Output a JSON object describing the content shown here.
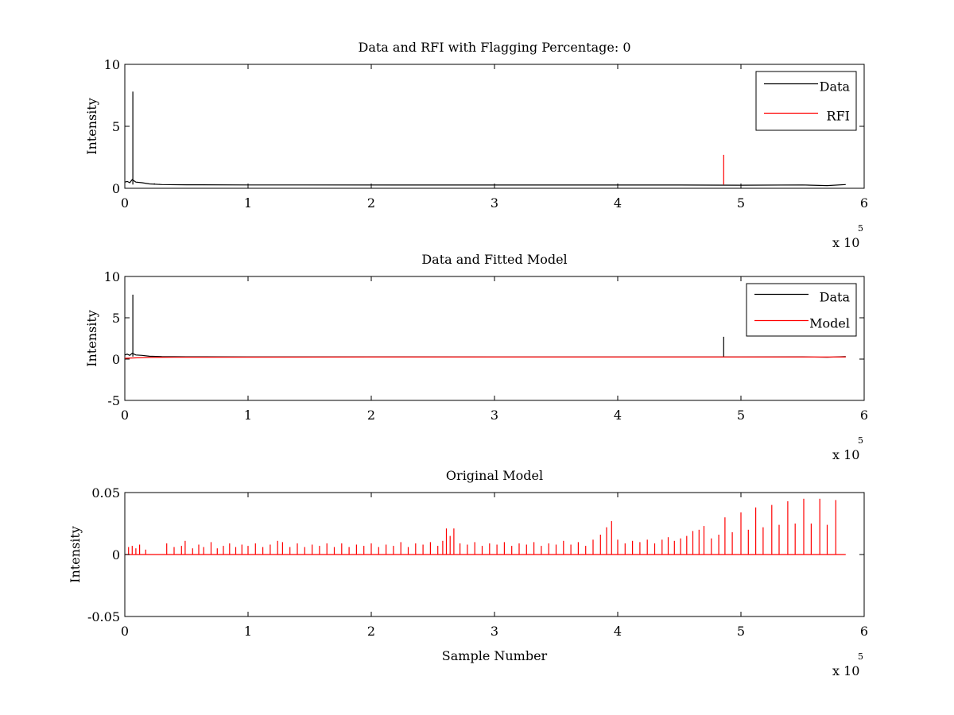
{
  "colors": {
    "data": "#000000",
    "rfi": "#ff0000",
    "model": "#ff0000",
    "background": "#ffffff"
  },
  "chart_data": [
    {
      "type": "line",
      "title": "Data and RFI with Flagging Percentage: 0",
      "xlabel": "",
      "ylabel": "Intensity",
      "xlim": [
        0,
        600000
      ],
      "ylim": [
        0,
        10
      ],
      "xticks": [
        0,
        1,
        2,
        3,
        4,
        5,
        6
      ],
      "yticks": [
        0,
        5,
        10
      ],
      "x_exponent": {
        "base": "x 10",
        "power": "5"
      },
      "legend": {
        "position": "top-right",
        "entries": [
          "Data",
          "RFI"
        ]
      },
      "series": [
        {
          "name": "Data",
          "color": "#000000",
          "baseline": [
            [
              0,
              0.5
            ],
            [
              2000,
              0.55
            ],
            [
              4000,
              0.45
            ],
            [
              6000,
              0.7
            ],
            [
              9000,
              0.5
            ],
            [
              14000,
              0.45
            ],
            [
              20000,
              0.35
            ],
            [
              30000,
              0.3
            ],
            [
              50000,
              0.28
            ],
            [
              100000,
              0.27
            ],
            [
              300000,
              0.26
            ],
            [
              450000,
              0.26
            ],
            [
              500000,
              0.25
            ],
            [
              550000,
              0.27
            ],
            [
              570000,
              0.22
            ],
            [
              585000,
              0.3
            ]
          ],
          "spikes": [
            [
              6500,
              7.8
            ],
            [
              24000,
              0.4
            ],
            [
              28000,
              0.35
            ]
          ]
        },
        {
          "name": "RFI",
          "color": "#ff0000",
          "baseline": [],
          "spikes": [
            [
              486000,
              2.7
            ]
          ]
        }
      ]
    },
    {
      "type": "line",
      "title": "Data and Fitted Model",
      "xlabel": "",
      "ylabel": "Intensity",
      "xlim": [
        0,
        600000
      ],
      "ylim": [
        -5,
        10
      ],
      "xticks": [
        0,
        1,
        2,
        3,
        4,
        5,
        6
      ],
      "yticks": [
        -5,
        0,
        5,
        10
      ],
      "x_exponent": {
        "base": "x 10",
        "power": "5"
      },
      "legend": {
        "position": "top-right",
        "entries": [
          "Data",
          "Model"
        ]
      },
      "series": [
        {
          "name": "Data",
          "color": "#000000",
          "baseline": [
            [
              0,
              0.5
            ],
            [
              2000,
              0.6
            ],
            [
              4000,
              0.45
            ],
            [
              6000,
              0.7
            ],
            [
              9000,
              0.5
            ],
            [
              14000,
              0.45
            ],
            [
              20000,
              0.35
            ],
            [
              30000,
              0.3
            ],
            [
              50000,
              0.28
            ],
            [
              100000,
              0.27
            ],
            [
              300000,
              0.26
            ],
            [
              450000,
              0.26
            ],
            [
              500000,
              0.25
            ],
            [
              550000,
              0.27
            ],
            [
              570000,
              0.22
            ],
            [
              585000,
              0.3
            ]
          ],
          "spikes": [
            [
              6500,
              7.8
            ],
            [
              486000,
              2.7
            ]
          ]
        },
        {
          "name": "Model",
          "color": "#ff0000",
          "baseline": [
            [
              0,
              0.1
            ],
            [
              10000,
              0.15
            ],
            [
              20000,
              0.2
            ],
            [
              40000,
              0.22
            ],
            [
              200000,
              0.25
            ],
            [
              585000,
              0.25
            ]
          ],
          "spikes": []
        }
      ]
    },
    {
      "type": "line",
      "title": "Original Model",
      "xlabel": "Sample Number",
      "ylabel": "Intensity",
      "xlim": [
        0,
        600000
      ],
      "ylim": [
        -0.05,
        0.05
      ],
      "xticks": [
        0,
        1,
        2,
        3,
        4,
        5,
        6
      ],
      "yticks": [
        -0.05,
        0,
        0.05
      ],
      "ytick_labels": [
        "-0.05",
        "0",
        "0.05"
      ],
      "x_exponent": {
        "base": "x 10",
        "power": "5"
      },
      "legend": null,
      "series": [
        {
          "name": "",
          "color": "#ff0000",
          "baseline": [
            [
              0,
              0
            ],
            [
              585000,
              0
            ]
          ],
          "spikes": [
            [
              3000,
              0.006
            ],
            [
              6000,
              0.007
            ],
            [
              9000,
              0.005
            ],
            [
              12000,
              0.008
            ],
            [
              17000,
              0.004
            ],
            [
              34000,
              0.009
            ],
            [
              40000,
              0.006
            ],
            [
              46000,
              0.007
            ],
            [
              49000,
              0.011
            ],
            [
              55000,
              0.005
            ],
            [
              60000,
              0.008
            ],
            [
              64000,
              0.006
            ],
            [
              70000,
              0.01
            ],
            [
              75000,
              0.005
            ],
            [
              80000,
              0.007
            ],
            [
              85000,
              0.009
            ],
            [
              90000,
              0.006
            ],
            [
              95000,
              0.008
            ],
            [
              100000,
              0.007
            ],
            [
              106000,
              0.009
            ],
            [
              112000,
              0.006
            ],
            [
              118000,
              0.008
            ],
            [
              124000,
              0.011
            ],
            [
              128000,
              0.01
            ],
            [
              134000,
              0.006
            ],
            [
              140000,
              0.009
            ],
            [
              146000,
              0.006
            ],
            [
              152000,
              0.008
            ],
            [
              158000,
              0.007
            ],
            [
              164000,
              0.009
            ],
            [
              170000,
              0.006
            ],
            [
              176000,
              0.009
            ],
            [
              182000,
              0.006
            ],
            [
              188000,
              0.008
            ],
            [
              194000,
              0.007
            ],
            [
              200000,
              0.009
            ],
            [
              206000,
              0.006
            ],
            [
              212000,
              0.008
            ],
            [
              218000,
              0.007
            ],
            [
              224000,
              0.01
            ],
            [
              230000,
              0.006
            ],
            [
              236000,
              0.009
            ],
            [
              242000,
              0.008
            ],
            [
              248000,
              0.01
            ],
            [
              254000,
              0.007
            ],
            [
              258000,
              0.011
            ],
            [
              261000,
              0.021
            ],
            [
              264000,
              0.015
            ],
            [
              267000,
              0.021
            ],
            [
              272000,
              0.009
            ],
            [
              278000,
              0.008
            ],
            [
              284000,
              0.01
            ],
            [
              290000,
              0.007
            ],
            [
              296000,
              0.009
            ],
            [
              302000,
              0.008
            ],
            [
              308000,
              0.01
            ],
            [
              314000,
              0.007
            ],
            [
              320000,
              0.009
            ],
            [
              326000,
              0.008
            ],
            [
              332000,
              0.01
            ],
            [
              338000,
              0.007
            ],
            [
              344000,
              0.009
            ],
            [
              350000,
              0.008
            ],
            [
              356000,
              0.011
            ],
            [
              362000,
              0.008
            ],
            [
              368000,
              0.01
            ],
            [
              374000,
              0.007
            ],
            [
              380000,
              0.012
            ],
            [
              386000,
              0.016
            ],
            [
              391000,
              0.022
            ],
            [
              395000,
              0.027
            ],
            [
              400000,
              0.012
            ],
            [
              406000,
              0.009
            ],
            [
              412000,
              0.011
            ],
            [
              418000,
              0.01
            ],
            [
              424000,
              0.012
            ],
            [
              430000,
              0.009
            ],
            [
              436000,
              0.012
            ],
            [
              441000,
              0.014
            ],
            [
              446000,
              0.011
            ],
            [
              451000,
              0.013
            ],
            [
              456000,
              0.015
            ],
            [
              461000,
              0.019
            ],
            [
              466000,
              0.02
            ],
            [
              470000,
              0.023
            ],
            [
              476000,
              0.013
            ],
            [
              482000,
              0.016
            ],
            [
              487000,
              0.03
            ],
            [
              493000,
              0.018
            ],
            [
              500000,
              0.034
            ],
            [
              506000,
              0.02
            ],
            [
              512000,
              0.038
            ],
            [
              518000,
              0.022
            ],
            [
              525000,
              0.04
            ],
            [
              531000,
              0.024
            ],
            [
              538000,
              0.043
            ],
            [
              544000,
              0.025
            ],
            [
              551000,
              0.045
            ],
            [
              557000,
              0.025
            ],
            [
              564000,
              0.045
            ],
            [
              570000,
              0.024
            ],
            [
              577000,
              0.044
            ]
          ]
        }
      ]
    }
  ]
}
